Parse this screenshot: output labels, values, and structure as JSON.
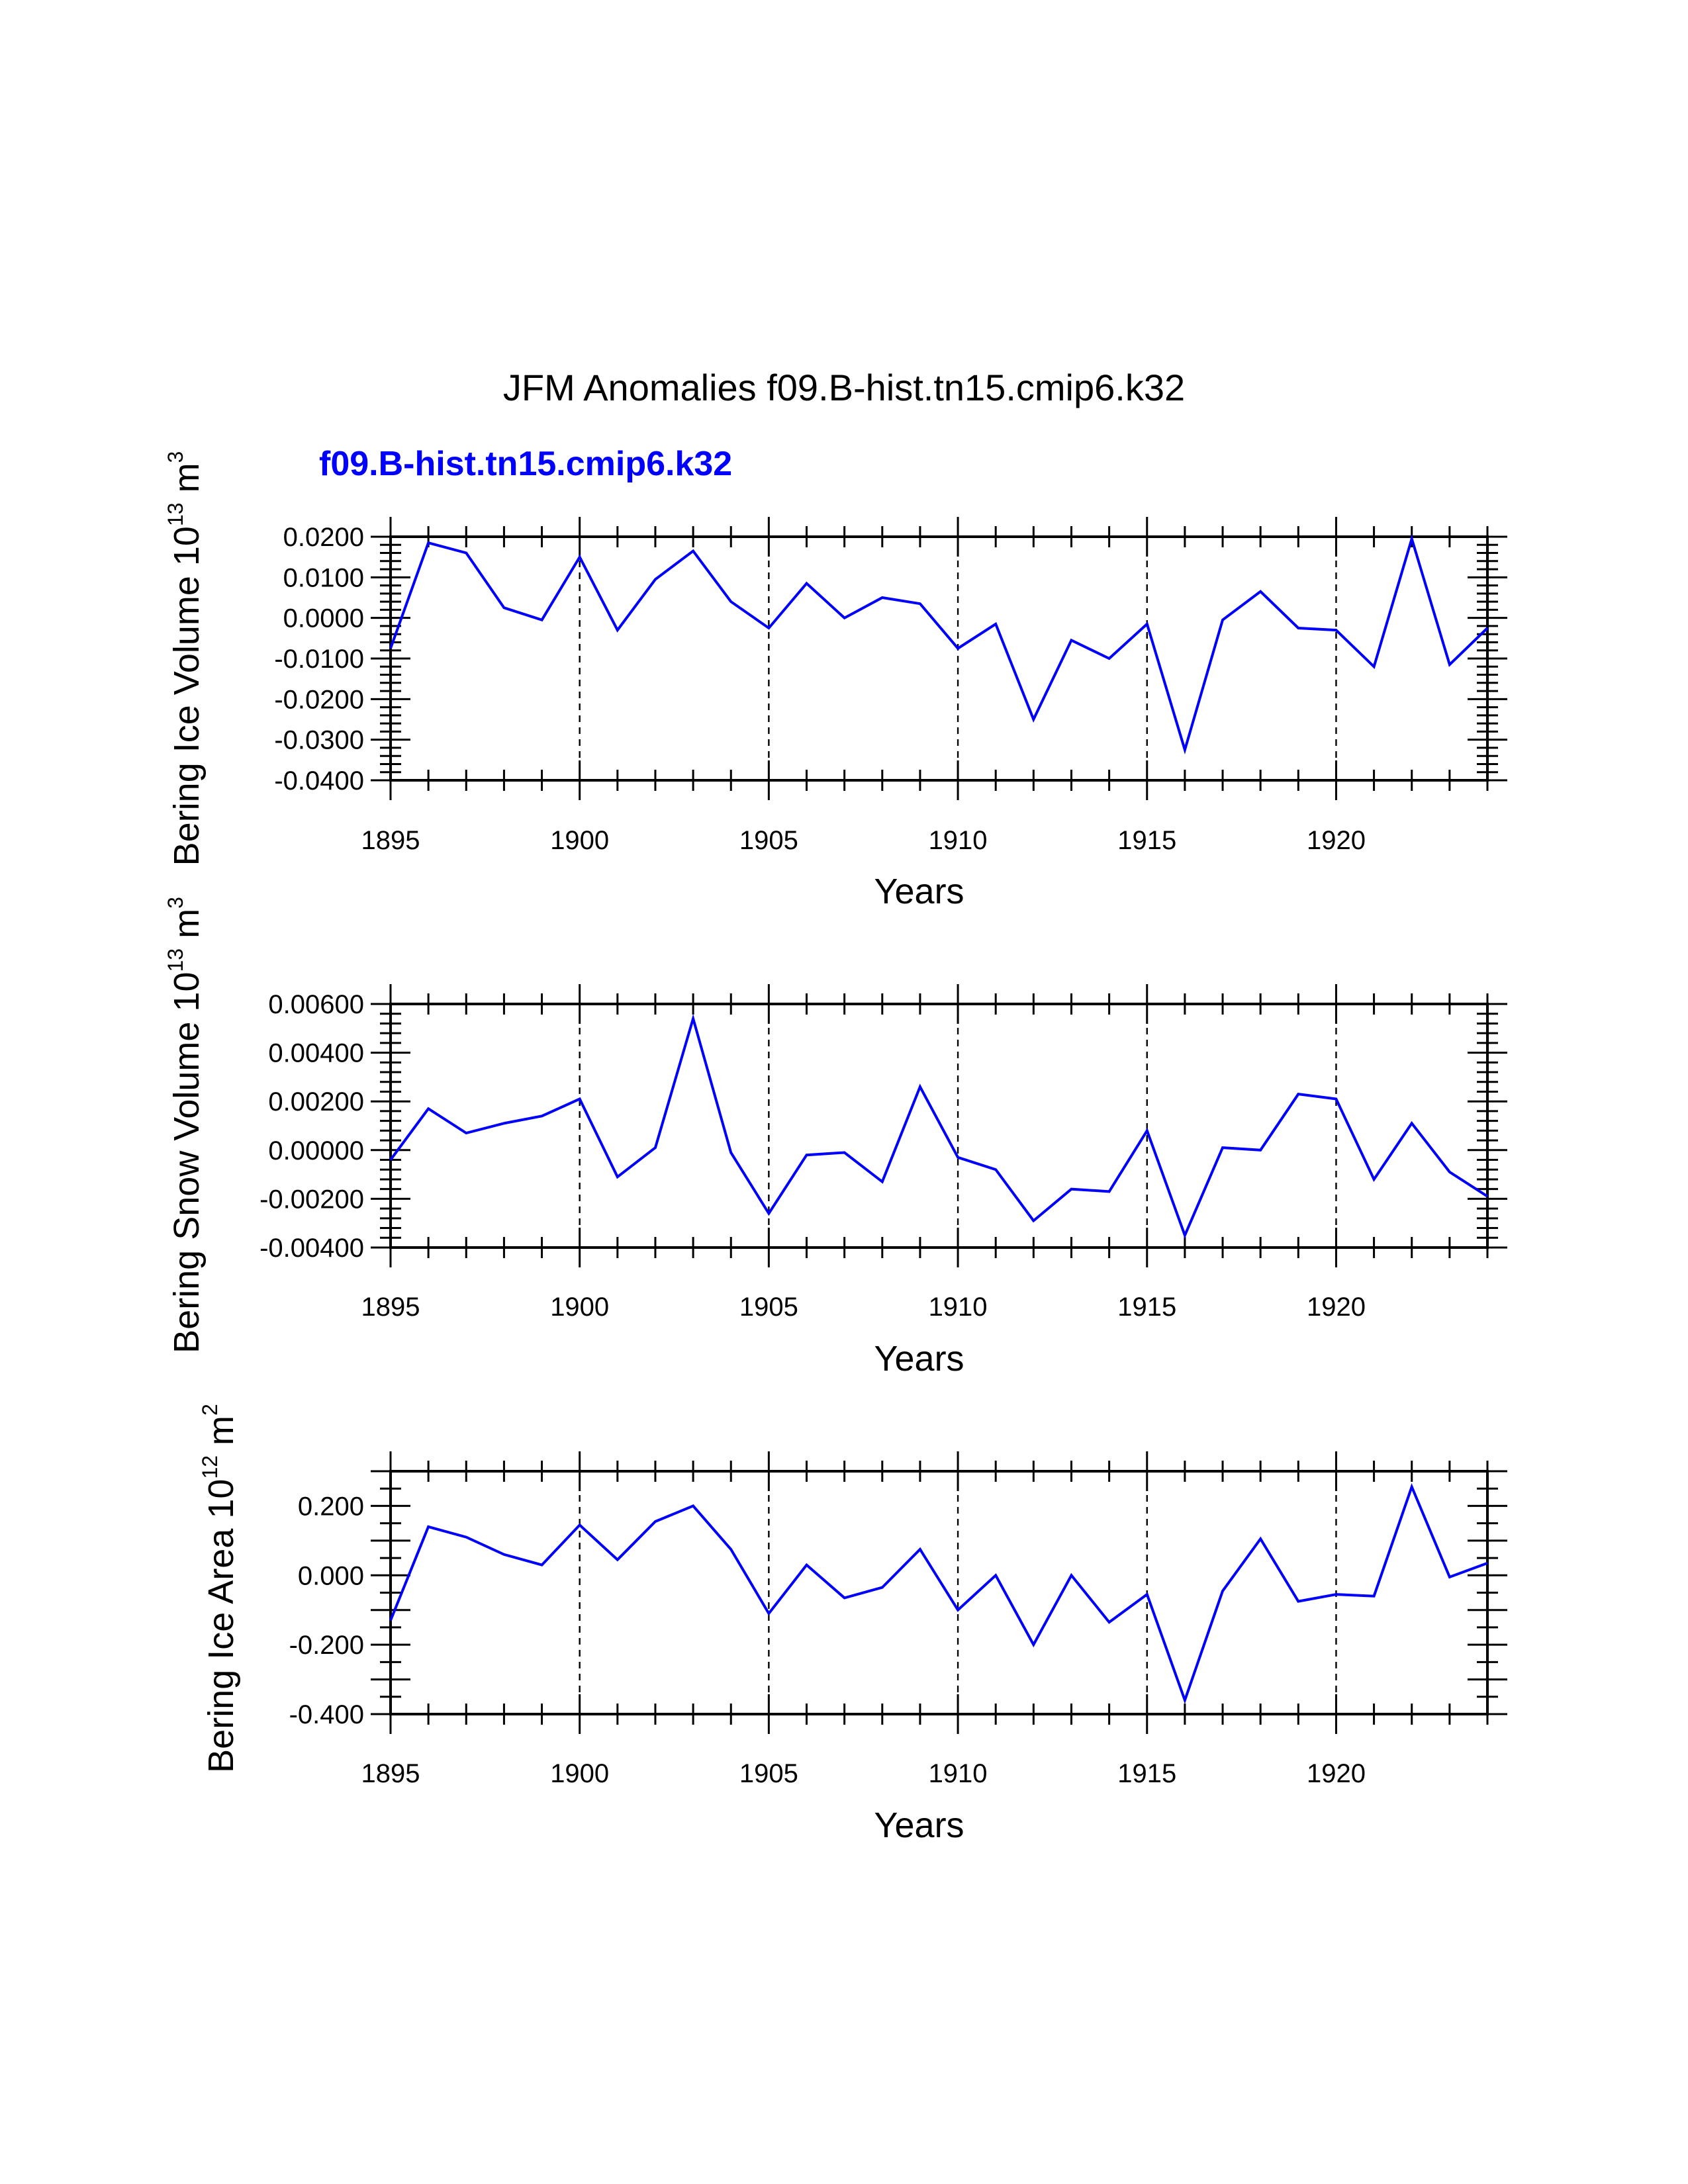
{
  "header": {
    "title": "JFM Anomalies f09.B-hist.tn15.cmip6.k32",
    "case_label": "f09.B-hist.tn15.cmip6.k32"
  },
  "colors": {
    "series": "#0000ff",
    "axes": "#000000"
  },
  "chart_data": [
    {
      "type": "line",
      "ylabel_main": "Bering Ice Volume 10",
      "ylabel_exp": "13",
      "ylabel_unit": " m",
      "ylabel_unit_exp": "3",
      "xlabel": "Years",
      "xlim": [
        1895,
        1924
      ],
      "ylim": [
        -0.04,
        0.02
      ],
      "major_step": 0.01,
      "minor_step": 0.002,
      "yticks": [
        0.02,
        0.01,
        0.0,
        -0.01,
        -0.02,
        -0.03,
        -0.04
      ],
      "ytick_labels": [
        "0.0200",
        "0.0100",
        "0.0000",
        "-0.0100",
        "-0.0200",
        "-0.0300",
        "-0.0400"
      ],
      "xticks": [
        1895,
        1900,
        1905,
        1910,
        1915,
        1920
      ],
      "xtick_labels": [
        "1895",
        "1900",
        "1905",
        "1910",
        "1915",
        "1920"
      ],
      "grid_x": [
        1900,
        1905,
        1910,
        1915,
        1920
      ],
      "series": [
        {
          "name": "f09.B-hist.tn15.cmip6.k32",
          "x": [
            1895,
            1896,
            1897,
            1898,
            1899,
            1900,
            1901,
            1902,
            1903,
            1904,
            1905,
            1906,
            1907,
            1908,
            1909,
            1910,
            1911,
            1912,
            1913,
            1914,
            1915,
            1916,
            1917,
            1918,
            1919,
            1920,
            1921,
            1922,
            1923,
            1924
          ],
          "values": [
            -0.0075,
            0.0185,
            0.016,
            0.0025,
            -0.0005,
            0.015,
            -0.003,
            0.0095,
            0.0165,
            0.004,
            -0.0025,
            0.0085,
            0.0,
            0.005,
            0.0035,
            -0.0075,
            -0.0015,
            -0.025,
            -0.0055,
            -0.01,
            -0.0015,
            -0.0325,
            -0.0005,
            0.0065,
            -0.0025,
            -0.003,
            -0.012,
            0.0195,
            -0.0115,
            -0.0025
          ]
        }
      ]
    },
    {
      "type": "line",
      "ylabel_main": "Bering Snow Volume 10",
      "ylabel_exp": "13",
      "ylabel_unit": " m",
      "ylabel_unit_exp": "3",
      "xlabel": "Years",
      "xlim": [
        1895,
        1924
      ],
      "ylim": [
        -0.004,
        0.006
      ],
      "major_step": 0.002,
      "minor_step": 0.0004,
      "yticks": [
        0.006,
        0.004,
        0.002,
        0.0,
        -0.002,
        -0.004
      ],
      "ytick_labels": [
        "0.00600",
        "0.00400",
        "0.00200",
        "0.00000",
        "-0.00200",
        "-0.00400"
      ],
      "xticks": [
        1895,
        1900,
        1905,
        1910,
        1915,
        1920
      ],
      "xtick_labels": [
        "1895",
        "1900",
        "1905",
        "1910",
        "1915",
        "1920"
      ],
      "grid_x": [
        1900,
        1905,
        1910,
        1915,
        1920
      ],
      "series": [
        {
          "name": "f09.B-hist.tn15.cmip6.k32",
          "x": [
            1895,
            1896,
            1897,
            1898,
            1899,
            1900,
            1901,
            1902,
            1903,
            1904,
            1905,
            1906,
            1907,
            1908,
            1909,
            1910,
            1911,
            1912,
            1913,
            1914,
            1915,
            1916,
            1917,
            1918,
            1919,
            1920,
            1921,
            1922,
            1923,
            1924
          ],
          "values": [
            -0.0004,
            0.0017,
            0.0007,
            0.0011,
            0.0014,
            0.0021,
            -0.0011,
            0.0001,
            0.0054,
            -0.0001,
            -0.0026,
            -0.0002,
            -0.0001,
            -0.0013,
            0.0026,
            -0.0003,
            -0.0008,
            -0.0029,
            -0.0016,
            -0.0017,
            0.0008,
            -0.0035,
            0.0001,
            0.0,
            0.0023,
            0.0021,
            -0.0012,
            0.0011,
            -0.0009,
            -0.0019
          ]
        }
      ]
    },
    {
      "type": "line",
      "ylabel_main": "Bering Ice Area 10",
      "ylabel_exp": "12",
      "ylabel_unit": " m",
      "ylabel_unit_exp": "2",
      "xlabel": "Years",
      "xlim": [
        1895,
        1924
      ],
      "ylim": [
        -0.4,
        0.3
      ],
      "major_step": 0.1,
      "minor_step": 0.05,
      "yticks": [
        0.2,
        0.0,
        -0.2,
        -0.4
      ],
      "ytick_labels": [
        "0.200",
        "0.000",
        "-0.200",
        "-0.400"
      ],
      "xticks": [
        1895,
        1900,
        1905,
        1910,
        1915,
        1920
      ],
      "xtick_labels": [
        "1895",
        "1900",
        "1905",
        "1910",
        "1915",
        "1920"
      ],
      "grid_x": [
        1900,
        1905,
        1910,
        1915,
        1920
      ],
      "series": [
        {
          "name": "f09.B-hist.tn15.cmip6.k32",
          "x": [
            1895,
            1896,
            1897,
            1898,
            1899,
            1900,
            1901,
            1902,
            1903,
            1904,
            1905,
            1906,
            1907,
            1908,
            1909,
            1910,
            1911,
            1912,
            1913,
            1914,
            1915,
            1916,
            1917,
            1918,
            1919,
            1920,
            1921,
            1922,
            1923,
            1924
          ],
          "values": [
            -0.13,
            0.14,
            0.11,
            0.06,
            0.03,
            0.145,
            0.045,
            0.155,
            0.2,
            0.075,
            -0.11,
            0.03,
            -0.065,
            -0.035,
            0.075,
            -0.1,
            0.0,
            -0.2,
            0.0,
            -0.135,
            -0.055,
            -0.36,
            -0.045,
            0.105,
            -0.075,
            -0.055,
            -0.06,
            0.255,
            -0.005,
            0.035
          ]
        }
      ]
    }
  ]
}
